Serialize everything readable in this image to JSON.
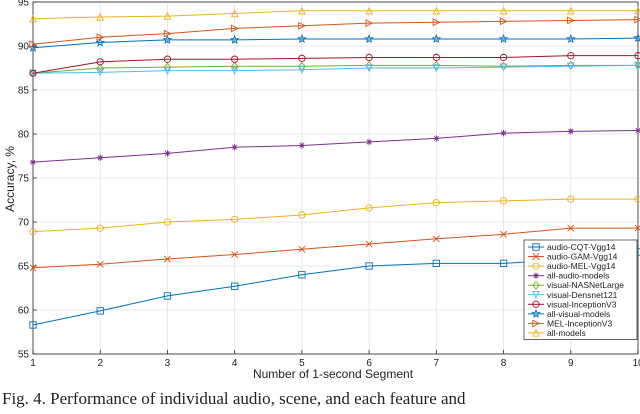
{
  "chart_data": {
    "type": "line",
    "title": "",
    "xlabel": "Number of 1-second Segment",
    "ylabel": "Accuracy, %",
    "x": [
      1,
      2,
      3,
      4,
      5,
      6,
      7,
      8,
      9,
      10
    ],
    "xlim": [
      1,
      10
    ],
    "ylim": [
      55,
      95
    ],
    "xticks": [
      1,
      2,
      3,
      4,
      5,
      6,
      7,
      8,
      9,
      10
    ],
    "yticks": [
      55,
      60,
      65,
      70,
      75,
      80,
      85,
      90,
      95
    ],
    "grid": true,
    "legend_position": "bottom-right",
    "series": [
      {
        "name": "audio-CQT-Vgg14",
        "color": "#0072BD",
        "marker": "square",
        "values": [
          58.3,
          59.9,
          61.6,
          62.7,
          64.0,
          65.0,
          65.3,
          65.3,
          65.8,
          66.6
        ]
      },
      {
        "name": "audio-GAM-Vgg14",
        "color": "#D95319",
        "marker": "x",
        "values": [
          64.8,
          65.2,
          65.8,
          66.3,
          66.9,
          67.5,
          68.1,
          68.6,
          69.3,
          69.3
        ]
      },
      {
        "name": "audio-MEL-Vgg14",
        "color": "#EDB120",
        "marker": "circle",
        "values": [
          68.9,
          69.3,
          70.0,
          70.3,
          70.8,
          71.6,
          72.2,
          72.4,
          72.6,
          72.6
        ]
      },
      {
        "name": "all-audio-models",
        "color": "#7E2F8E",
        "marker": "asterisk",
        "values": [
          76.8,
          77.3,
          77.8,
          78.5,
          78.7,
          79.1,
          79.5,
          80.1,
          80.3,
          80.4
        ]
      },
      {
        "name": "visual-NASNetLarge",
        "color": "#77AC30",
        "marker": "diamond",
        "values": [
          86.9,
          87.5,
          87.6,
          87.7,
          87.7,
          87.8,
          87.8,
          87.7,
          87.8,
          87.8
        ]
      },
      {
        "name": "visual-Densnet121",
        "color": "#4DBEEE",
        "marker": "triangle-down",
        "values": [
          86.9,
          87.0,
          87.2,
          87.2,
          87.3,
          87.5,
          87.5,
          87.6,
          87.7,
          87.8
        ]
      },
      {
        "name": "visual-InceptionV3",
        "color": "#A2142F",
        "marker": "circle",
        "values": [
          86.9,
          88.2,
          88.5,
          88.5,
          88.6,
          88.7,
          88.7,
          88.7,
          88.9,
          88.9
        ]
      },
      {
        "name": "all-visual-models",
        "color": "#0072BD",
        "marker": "star",
        "values": [
          89.8,
          90.4,
          90.7,
          90.7,
          90.8,
          90.8,
          90.8,
          90.8,
          90.8,
          90.9
        ]
      },
      {
        "name": "MEL-InceptionV3",
        "color": "#D95319",
        "marker": "triangle-right",
        "values": [
          90.2,
          91.0,
          91.4,
          92.0,
          92.3,
          92.6,
          92.7,
          92.8,
          92.9,
          93.0
        ]
      },
      {
        "name": "all-models",
        "color": "#EDB120",
        "marker": "triangle-up",
        "values": [
          93.1,
          93.3,
          93.4,
          93.7,
          94.0,
          94.0,
          94.0,
          94.0,
          94.0,
          94.0
        ]
      }
    ]
  },
  "caption": "Fig. 4.    Performance of individual audio, scene, and each feature and"
}
